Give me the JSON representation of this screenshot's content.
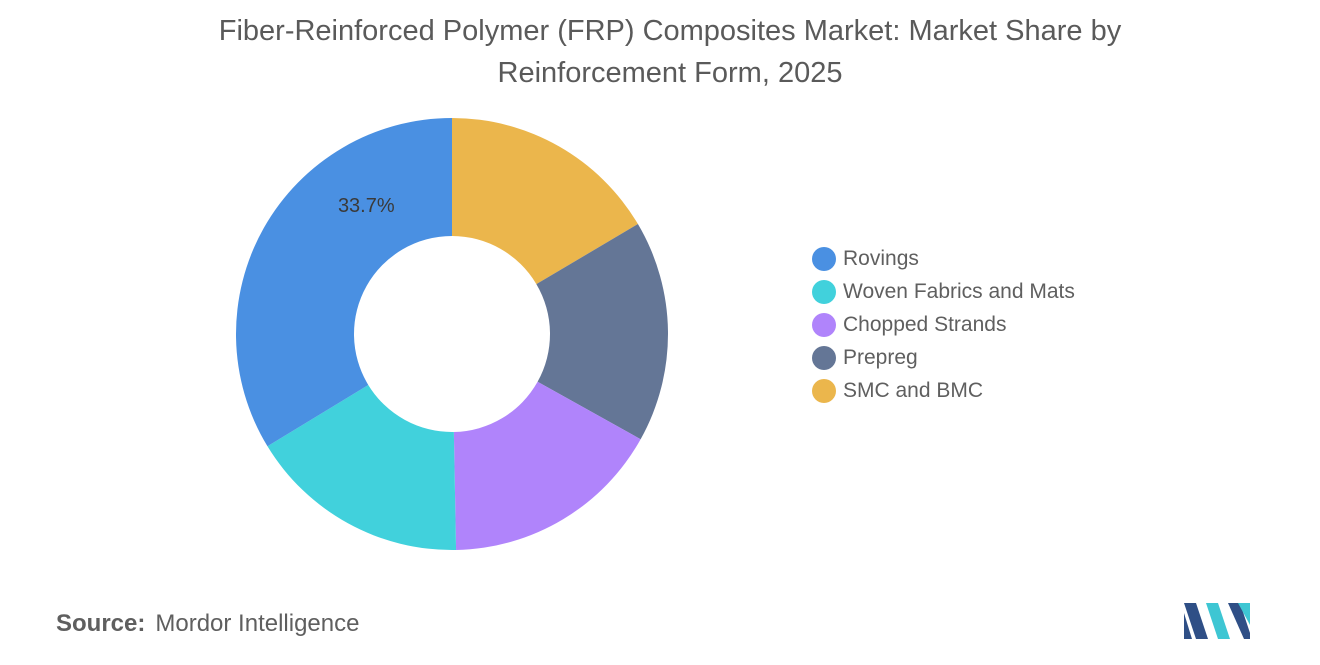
{
  "title": "Fiber-Reinforced Polymer (FRP) Composites Market: Market Share by Reinforcement Form, 2025",
  "source": {
    "label": "Source:",
    "value": "Mordor Intelligence"
  },
  "chart_data": {
    "type": "pie",
    "donut": true,
    "title": "Fiber-Reinforced Polymer (FRP) Composites Market: Market Share by Reinforcement Form, 2025",
    "legend_position": "right",
    "slices": [
      {
        "label": "Rovings",
        "value": 33.7,
        "color": "#4a90e2",
        "value_label": "33.7%"
      },
      {
        "label": "Woven Fabrics and Mats",
        "value": 16.6,
        "color": "#41d1dc"
      },
      {
        "label": "Chopped Strands",
        "value": 16.6,
        "color": "#b084fb"
      },
      {
        "label": "Prepreg",
        "value": 16.6,
        "color": "#647696"
      },
      {
        "label": "SMC and BMC",
        "value": 16.5,
        "color": "#ebb64c"
      }
    ]
  },
  "logo_colors": [
    "#2f4f86",
    "#3ec6d3"
  ]
}
